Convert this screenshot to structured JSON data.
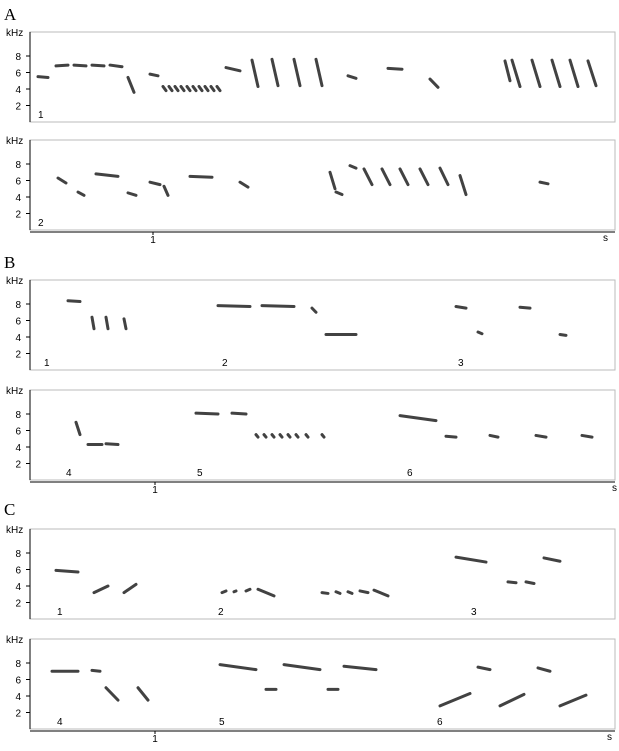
{
  "panels": [
    {
      "label": "A",
      "subpanels": [
        {
          "y_axis_label": "kHz",
          "yticks": [
            "2",
            "4",
            "6",
            "8"
          ],
          "numbers": [
            "1"
          ]
        },
        {
          "y_axis_label": "kHz",
          "yticks": [
            "2",
            "4",
            "6",
            "8"
          ],
          "numbers": [
            "2"
          ]
        }
      ],
      "x_axis": {
        "tick": "1",
        "unit": "s"
      }
    },
    {
      "label": "B",
      "subpanels": [
        {
          "y_axis_label": "kHz",
          "yticks": [
            "2",
            "4",
            "6",
            "8"
          ],
          "numbers": [
            "1",
            "2",
            "3"
          ]
        },
        {
          "y_axis_label": "kHz",
          "yticks": [
            "2",
            "4",
            "6",
            "8"
          ],
          "numbers": [
            "4",
            "5",
            "6"
          ]
        }
      ],
      "x_axis": {
        "tick": "1",
        "unit": "s"
      }
    },
    {
      "label": "C",
      "subpanels": [
        {
          "y_axis_label": "kHz",
          "yticks": [
            "2",
            "4",
            "6",
            "8"
          ],
          "numbers": [
            "1",
            "2",
            "3"
          ]
        },
        {
          "y_axis_label": "kHz",
          "yticks": [
            "2",
            "4",
            "6",
            "8"
          ],
          "numbers": [
            "4",
            "5",
            "6"
          ]
        }
      ],
      "x_axis": {
        "tick": "1",
        "unit": "s"
      }
    }
  ]
}
